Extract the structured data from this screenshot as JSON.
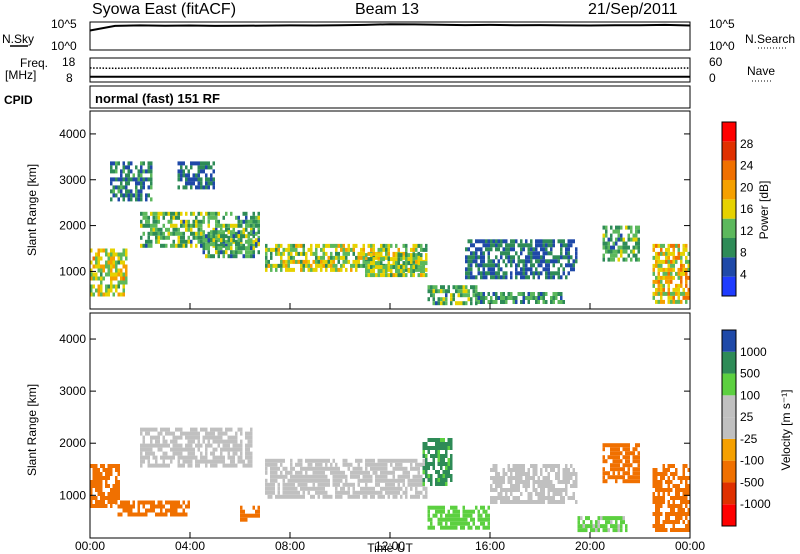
{
  "header": {
    "station": "Syowa East (fitACF)",
    "beam": "Beam 13",
    "date": "21/Sep/2011"
  },
  "left_labels": {
    "nsky": "N.Sky",
    "freq_line1": "Freq.",
    "freq_line2": "[MHz]",
    "cpid": "CPID"
  },
  "right_labels": {
    "nsearch": "N.Search",
    "nave": "Nave"
  },
  "cpid_text": "normal (fast) 151 RF",
  "colors": {
    "background": "#ffffff",
    "power_scale": [
      "#1f3cff",
      "#1f49a8",
      "#2e8b57",
      "#5cb85c",
      "#e6d200",
      "#f5a000",
      "#f07000",
      "#e03000",
      "#ff0000"
    ],
    "velocity_scale": [
      "#ff0000",
      "#e03000",
      "#f07000",
      "#f5a000",
      "#c0c0c0",
      "#c0c0c0",
      "#5cd040",
      "#2e8b57",
      "#1f49a8",
      "#1f3cff"
    ]
  },
  "chart_data": [
    {
      "type": "line",
      "panel": "noise",
      "left_ticks": [
        "10^5",
        "10^0"
      ],
      "right_ticks": [
        "10^5",
        "10^0"
      ],
      "series": [
        {
          "name": "N.Sky",
          "x": [
            0,
            1,
            2,
            3,
            4,
            5,
            6,
            7,
            8,
            9,
            10,
            11,
            12,
            13,
            14,
            15,
            16,
            17,
            18,
            19,
            20,
            21,
            22,
            23,
            24
          ],
          "values": [
            3000,
            20000,
            25000,
            22000,
            24000,
            20000,
            21000,
            23000,
            25000,
            24000,
            27000,
            30000,
            40000,
            37000,
            31000,
            28000,
            30000,
            27000,
            28000,
            25000,
            24000,
            27000,
            26000,
            30000,
            24000
          ]
        },
        {
          "name": "N.Search",
          "x": [
            0,
            24
          ],
          "values": [
            null,
            null
          ]
        }
      ]
    },
    {
      "type": "scatter",
      "panel": "freq_nave",
      "left_ticks": [
        "18",
        "8"
      ],
      "right_ticks": [
        "60",
        "0"
      ],
      "series": [
        {
          "name": "Freq.",
          "x": [
            0,
            24
          ],
          "values": [
            10.2,
            10.2
          ]
        },
        {
          "name": "Nave",
          "x": [
            0,
            1,
            2,
            3,
            4,
            5,
            6,
            7,
            8,
            9,
            10,
            11,
            12,
            13,
            14,
            15,
            16,
            17,
            18,
            19,
            20,
            21,
            22,
            23,
            24
          ],
          "values": [
            37,
            36,
            37,
            36,
            37,
            37,
            36,
            37,
            37,
            36,
            37,
            37,
            36,
            37,
            37,
            36,
            37,
            37,
            36,
            37,
            37,
            36,
            37,
            36,
            37
          ]
        }
      ]
    },
    {
      "type": "heatmap",
      "panel": "power",
      "ylabel": "Slant Range [km]",
      "ylim": [
        180,
        4500
      ],
      "y_ticks": [
        "1000",
        "2000",
        "3000",
        "4000"
      ],
      "colorbar_label": "Power [dB]",
      "colorbar_ticks": [
        "4",
        "8",
        "12",
        "16",
        "20",
        "24",
        "28"
      ],
      "bands": [
        {
          "x": [
            0,
            1.5
          ],
          "y": [
            500,
            1500
          ],
          "level": 18
        },
        {
          "x": [
            0.8,
            2.5
          ],
          "y": [
            2600,
            3400
          ],
          "level": 9
        },
        {
          "x": [
            2,
            6.8
          ],
          "y": [
            1600,
            2300
          ],
          "level": 13
        },
        {
          "x": [
            3.5,
            5
          ],
          "y": [
            2800,
            3400
          ],
          "level": 8
        },
        {
          "x": [
            4.5,
            6.8
          ],
          "y": [
            1300,
            1900
          ],
          "level": 12
        },
        {
          "x": [
            7,
            13.5
          ],
          "y": [
            1000,
            1600
          ],
          "level": 16
        },
        {
          "x": [
            11,
            13.5
          ],
          "y": [
            900,
            1400
          ],
          "level": 15
        },
        {
          "x": [
            13.5,
            15.5
          ],
          "y": [
            300,
            700
          ],
          "level": 13
        },
        {
          "x": [
            15,
            19.5
          ],
          "y": [
            900,
            1700
          ],
          "level": 8
        },
        {
          "x": [
            15.5,
            19
          ],
          "y": [
            300,
            550
          ],
          "level": 11
        },
        {
          "x": [
            20.5,
            22
          ],
          "y": [
            1300,
            2000
          ],
          "level": 12
        },
        {
          "x": [
            22.5,
            24
          ],
          "y": [
            300,
            1600
          ],
          "level": 20
        }
      ]
    },
    {
      "type": "heatmap",
      "panel": "velocity",
      "xlabel": "Time UT",
      "ylabel": "Slant Range [km]",
      "ylim": [
        180,
        4500
      ],
      "xlim": [
        0,
        24
      ],
      "x_ticks": [
        "00:00",
        "04:00",
        "08:00",
        "12:00",
        "16:00",
        "20:00",
        "00:00"
      ],
      "y_ticks": [
        "1000",
        "2000",
        "3000",
        "4000"
      ],
      "colorbar_label": "Velocity [m s⁻¹]",
      "colorbar_ticks": [
        "1000",
        "500",
        "100",
        "25",
        "-25",
        "-100",
        "-500",
        "-1000"
      ],
      "bands": [
        {
          "x": [
            0,
            1.2
          ],
          "y": [
            800,
            1600
          ],
          "level": -150
        },
        {
          "x": [
            1,
            4
          ],
          "y": [
            600,
            900
          ],
          "level": -200
        },
        {
          "x": [
            2,
            6.5
          ],
          "y": [
            1600,
            2300
          ],
          "level": 5
        },
        {
          "x": [
            6,
            6.8
          ],
          "y": [
            500,
            800
          ],
          "level": -150
        },
        {
          "x": [
            7,
            13.5
          ],
          "y": [
            1000,
            1700
          ],
          "level": 0
        },
        {
          "x": [
            13.3,
            14.5
          ],
          "y": [
            1200,
            2100
          ],
          "level": 600
        },
        {
          "x": [
            13.5,
            16
          ],
          "y": [
            400,
            800
          ],
          "level": 150
        },
        {
          "x": [
            16,
            19.5
          ],
          "y": [
            900,
            1600
          ],
          "level": 0
        },
        {
          "x": [
            19.5,
            21.5
          ],
          "y": [
            300,
            600
          ],
          "level": 120
        },
        {
          "x": [
            20.5,
            22
          ],
          "y": [
            1300,
            2000
          ],
          "level": -150
        },
        {
          "x": [
            22.5,
            24
          ],
          "y": [
            300,
            1600
          ],
          "level": -200
        }
      ]
    }
  ]
}
